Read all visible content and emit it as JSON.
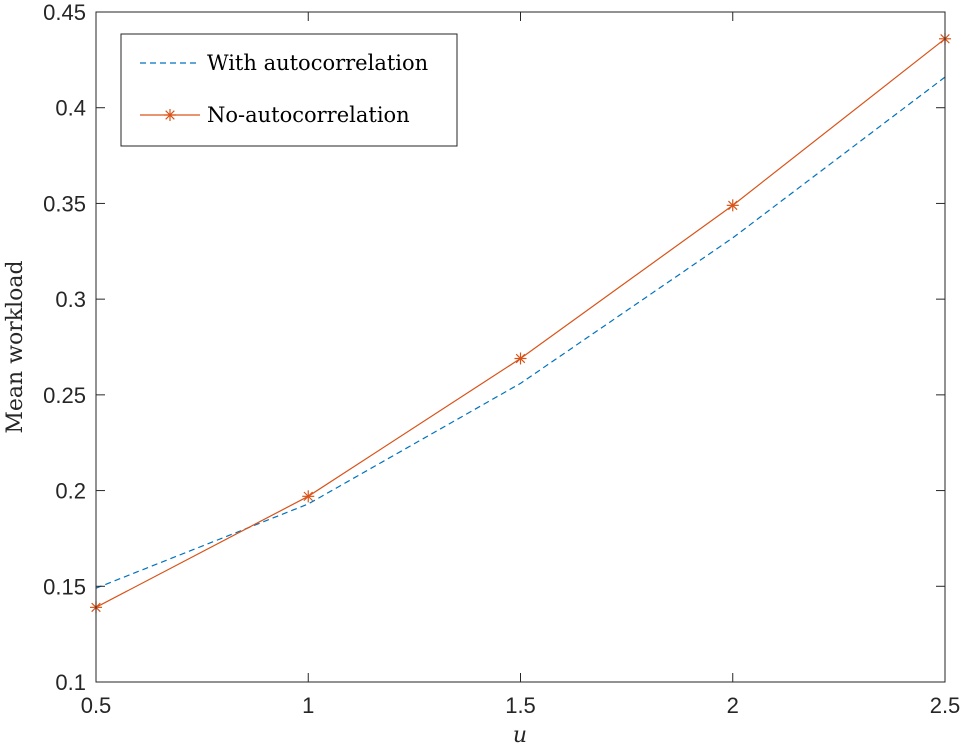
{
  "chart_data": {
    "type": "line",
    "xlabel": "u",
    "ylabel": "Mean workload",
    "xlim": [
      0.5,
      2.5
    ],
    "ylim": [
      0.1,
      0.45
    ],
    "xticks": [
      "0.5",
      "1",
      "1.5",
      "2",
      "2.5"
    ],
    "yticks": [
      "0.1",
      "0.15",
      "0.2",
      "0.25",
      "0.3",
      "0.35",
      "0.4",
      "0.45"
    ],
    "grid": false,
    "legend_position": "top-left",
    "series": [
      {
        "name": "With autocorrelation",
        "style": "dashed",
        "marker": "none",
        "color": "#0072BD",
        "x": [
          0.5,
          1,
          1.5,
          2,
          2.5
        ],
        "y": [
          0.149,
          0.193,
          0.256,
          0.332,
          0.416
        ]
      },
      {
        "name": "No-autocorrelation",
        "style": "solid",
        "marker": "asterisk",
        "color": "#D95319",
        "x": [
          0.5,
          1,
          1.5,
          2,
          2.5
        ],
        "y": [
          0.139,
          0.197,
          0.269,
          0.349,
          0.436
        ]
      }
    ]
  }
}
